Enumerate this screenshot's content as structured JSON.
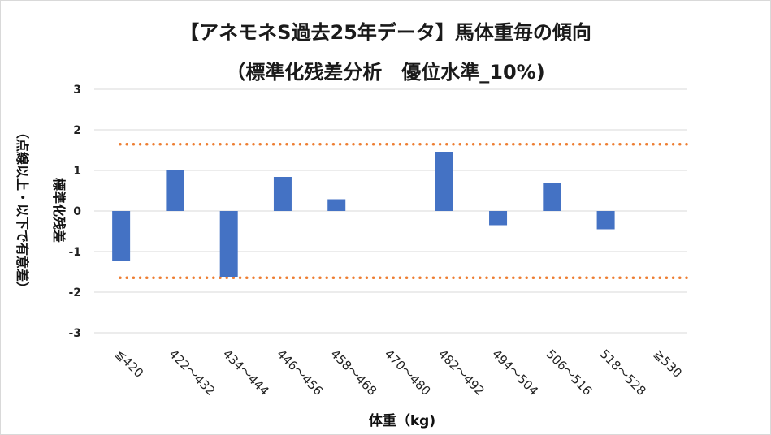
{
  "chart_data": {
    "type": "bar",
    "title": "【アネモネS過去25年データ】馬体重毎の傾向",
    "subtitle": "（標準化残差分析　優位水準_10%)",
    "xlabel": "体重（kg)",
    "ylabel_main": "標準化残差",
    "ylabel_note": "（点線以上・以下で有意差）",
    "categories": [
      "≦420",
      "422～432",
      "434～444",
      "446～456",
      "458～468",
      "470～480",
      "482～492",
      "494～504",
      "506～516",
      "518～528",
      "≧530"
    ],
    "values": [
      -1.23,
      1.0,
      -1.62,
      0.84,
      0.29,
      0,
      1.46,
      -0.35,
      0.7,
      -0.45,
      0
    ],
    "ylim": [
      -3,
      3
    ],
    "yticks": [
      "3",
      "2",
      "1",
      "0",
      "-1",
      "-2",
      "-3"
    ],
    "threshold_upper": 1.645,
    "threshold_lower": -1.645,
    "grid": true,
    "colors": {
      "bar": "#4472c4",
      "threshold": "#ed7d31",
      "grid": "#d9d9d9"
    }
  }
}
